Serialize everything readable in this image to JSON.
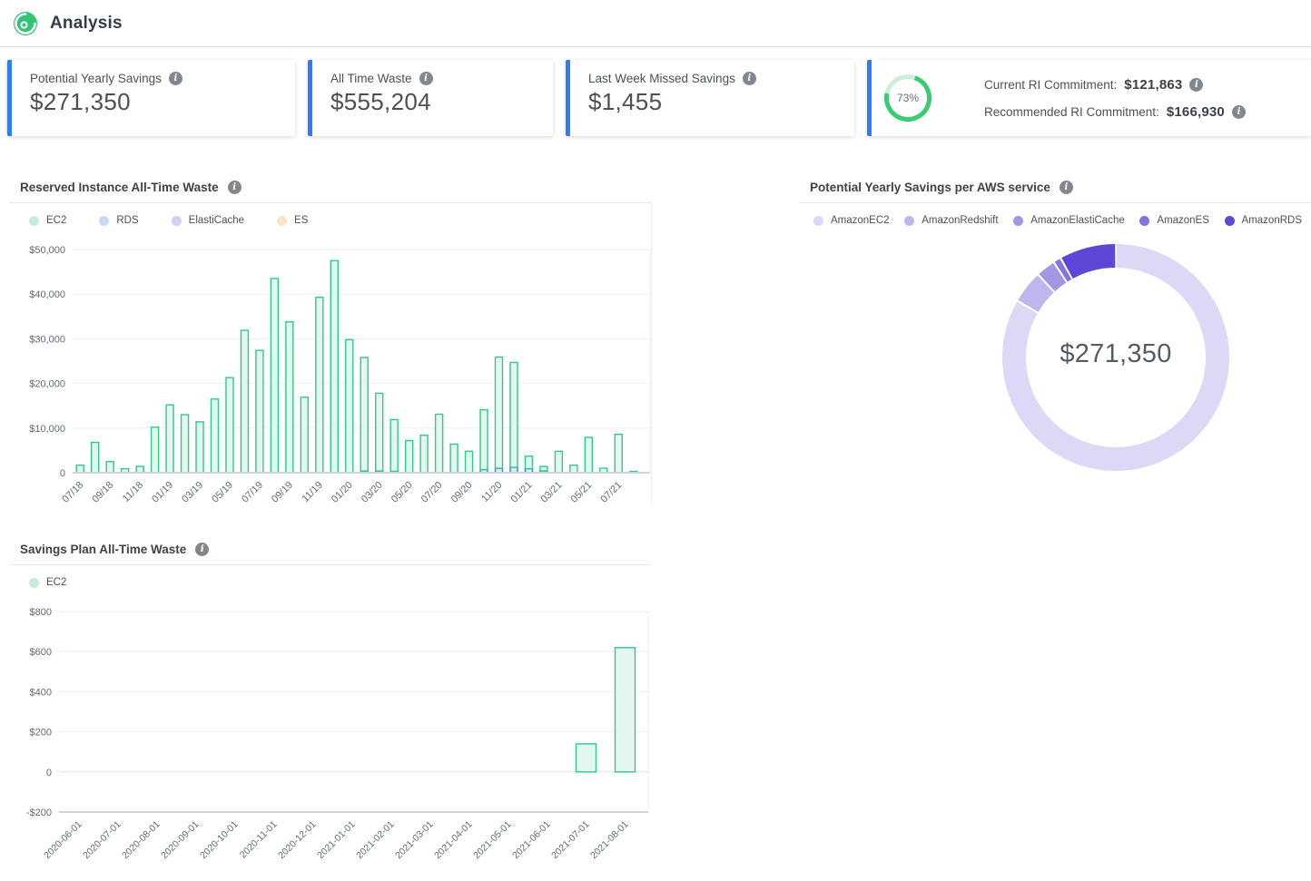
{
  "header": {
    "title": "Analysis",
    "logo": "spot-logo"
  },
  "colors": {
    "accent_blue": "#2e7cf6",
    "bar_green_stroke": "#2fc98a",
    "bar_blue_stroke": "#2e7cf6",
    "percent_green": "#3bcb74",
    "info_icon_gray": "#82878e"
  },
  "cards": [
    {
      "label": "Potential Yearly Savings",
      "value": "$271,350"
    },
    {
      "label": "All Time Waste",
      "value": "$555,204"
    },
    {
      "label": "Last Week Missed Savings",
      "value": "$1,455"
    },
    {
      "percent": "73%",
      "percent_value": 73,
      "rows": [
        {
          "label": "Current RI Commitment:",
          "value": "$121,863"
        },
        {
          "label": "Recommended RI Commitment:",
          "value": "$166,930"
        }
      ]
    }
  ],
  "chart_data": [
    {
      "id": "ri_waste",
      "type": "bar",
      "title": "Reserved Instance All-Time Waste",
      "stacked": true,
      "grid": true,
      "legend_position": "top",
      "categories": [
        "07/18",
        "08/18",
        "09/18",
        "10/18",
        "11/18",
        "12/18",
        "01/19",
        "02/19",
        "03/19",
        "04/19",
        "05/19",
        "06/19",
        "07/19",
        "08/19",
        "09/19",
        "10/19",
        "11/19",
        "12/19",
        "01/20",
        "02/20",
        "03/20",
        "04/20",
        "05/20",
        "06/20",
        "07/20",
        "08/20",
        "09/20",
        "10/20",
        "11/20",
        "12/20",
        "01/21",
        "02/21",
        "03/21",
        "04/21",
        "05/21",
        "06/21",
        "07/21",
        "08/21"
      ],
      "x_tick_every": 2,
      "ylim": [
        0,
        50000
      ],
      "ytick_values": [
        0,
        10000,
        20000,
        30000,
        40000,
        50000
      ],
      "ytick_labels": [
        "0",
        "$10,000",
        "$20,000",
        "$30,000",
        "$40,000",
        "$50,000"
      ],
      "legend": [
        {
          "name": "EC2",
          "dot": "#c7ecd9"
        },
        {
          "name": "RDS",
          "dot": "#c5d9f8"
        },
        {
          "name": "ElastiCache",
          "dot": "#d8cdf6"
        },
        {
          "name": "ES",
          "dot": "#fbe4c4"
        }
      ],
      "series": [
        {
          "name": "RDS",
          "stroke": "#2e7cf6",
          "fill": "#dbe7fb",
          "values": [
            0,
            0,
            0,
            0,
            0,
            0,
            0,
            0,
            0,
            0,
            0,
            0,
            0,
            0,
            0,
            0,
            0,
            0,
            0,
            400,
            400,
            300,
            0,
            0,
            0,
            0,
            0,
            700,
            1000,
            1200,
            900,
            400,
            0,
            0,
            0,
            0,
            0,
            0
          ]
        },
        {
          "name": "EC2",
          "stroke": "#2fc98a",
          "fill": "#e4f7ee",
          "values": [
            1700,
            6800,
            2500,
            900,
            1400,
            10200,
            15200,
            13000,
            11400,
            16500,
            21300,
            31900,
            27400,
            43500,
            33800,
            16900,
            39300,
            47500,
            29800,
            25400,
            17400,
            11600,
            7200,
            8400,
            13100,
            6400,
            4800,
            13400,
            24900,
            23500,
            2800,
            1000,
            4800,
            1700,
            7900,
            1000,
            8600,
            300
          ]
        },
        {
          "name": "ElastiCache",
          "stroke": "#8f7ce0",
          "fill": "#e9e3fa",
          "values": [
            0,
            0,
            0,
            0,
            0,
            0,
            0,
            0,
            0,
            0,
            0,
            0,
            0,
            0,
            0,
            0,
            0,
            0,
            0,
            0,
            0,
            0,
            0,
            0,
            0,
            0,
            0,
            0,
            0,
            0,
            0,
            0,
            0,
            0,
            0,
            0,
            0,
            0
          ]
        },
        {
          "name": "ES",
          "stroke": "#f0b35c",
          "fill": "#fdeed8",
          "values": [
            0,
            0,
            0,
            0,
            0,
            0,
            0,
            0,
            0,
            0,
            0,
            0,
            0,
            0,
            0,
            0,
            0,
            0,
            0,
            0,
            0,
            0,
            0,
            0,
            0,
            0,
            0,
            0,
            0,
            0,
            0,
            0,
            0,
            0,
            0,
            0,
            0,
            0
          ]
        }
      ]
    },
    {
      "id": "savings_per_service",
      "type": "pie",
      "title": "Potential Yearly Savings per AWS service",
      "center_label": "$271,350",
      "total": 271350,
      "legend_position": "top",
      "slices": [
        {
          "name": "AmazonEC2",
          "value": 226000,
          "color": "#dcd8f6"
        },
        {
          "name": "AmazonRedshift",
          "value": 12750,
          "color": "#c1b5ef"
        },
        {
          "name": "AmazonElastiCache",
          "value": 7600,
          "color": "#a495e5"
        },
        {
          "name": "AmazonES",
          "value": 3000,
          "color": "#8673de"
        },
        {
          "name": "AmazonRDS",
          "value": 22000,
          "color": "#5e46d6"
        }
      ]
    },
    {
      "id": "sp_waste",
      "type": "bar",
      "title": "Savings Plan All-Time Waste",
      "stacked": false,
      "grid": true,
      "legend_position": "top",
      "categories": [
        "2020-06-01",
        "2020-07-01",
        "2020-08-01",
        "2020-09-01",
        "2020-10-01",
        "2020-11-01",
        "2020-12-01",
        "2021-01-01",
        "2021-02-01",
        "2021-03-01",
        "2021-04-01",
        "2021-05-01",
        "2021-06-01",
        "2021-07-01",
        "2021-08-01"
      ],
      "x_tick_every": 1,
      "ylim": [
        -200,
        800
      ],
      "ytick_values": [
        -200,
        0,
        200,
        400,
        600,
        800
      ],
      "ytick_labels": [
        "-$200",
        "0",
        "$200",
        "$400",
        "$600",
        "$800"
      ],
      "legend": [
        {
          "name": "EC2",
          "dot": "#c7ecd9"
        }
      ],
      "series": [
        {
          "name": "EC2",
          "stroke": "#2fc98a",
          "fill": "#e4f7ee",
          "values": [
            0,
            0,
            0,
            0,
            0,
            0,
            0,
            0,
            0,
            0,
            0,
            0,
            0,
            140,
            620
          ]
        }
      ]
    }
  ]
}
